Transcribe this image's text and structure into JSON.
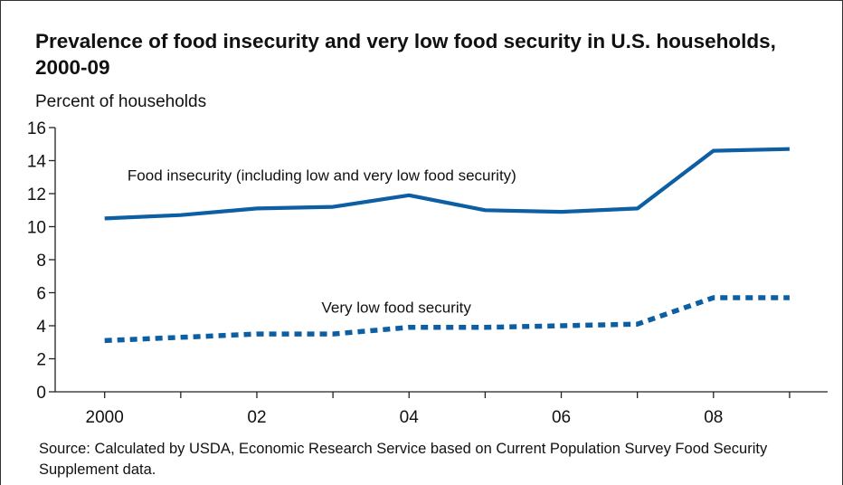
{
  "chart_data": {
    "type": "line",
    "title": "Prevalence of food insecurity and very low food security in U.S. households, 2000-09",
    "ylabel": "Percent of households",
    "xlabel": "",
    "x": [
      2000,
      2001,
      2002,
      2003,
      2004,
      2005,
      2006,
      2007,
      2008,
      2009
    ],
    "x_tick_values": [
      2000,
      2002,
      2004,
      2006,
      2008
    ],
    "x_tick_labels": [
      "2000",
      "02",
      "04",
      "06",
      "08"
    ],
    "xlim": [
      1999.35,
      2009.5
    ],
    "ylim": [
      0,
      16
    ],
    "y_ticks": [
      0,
      2,
      4,
      6,
      8,
      10,
      12,
      14,
      16
    ],
    "grid": false,
    "color": "#0d5fa3",
    "series": [
      {
        "name": "Food insecurity (including low and very low food security)",
        "style": "solid",
        "label_at": [
          2000.3,
          12.8
        ],
        "values": [
          10.5,
          10.7,
          11.1,
          11.2,
          11.9,
          11.0,
          10.9,
          11.1,
          14.6,
          14.7
        ]
      },
      {
        "name": "Very low food security",
        "style": "dotted",
        "label_at": [
          2002.85,
          4.8
        ],
        "values": [
          3.1,
          3.3,
          3.5,
          3.5,
          3.9,
          3.9,
          4.0,
          4.1,
          5.7,
          5.7
        ]
      }
    ],
    "source": "Source: Calculated by USDA, Economic Research Service based on Current Population Survey Food Security Supplement data."
  }
}
